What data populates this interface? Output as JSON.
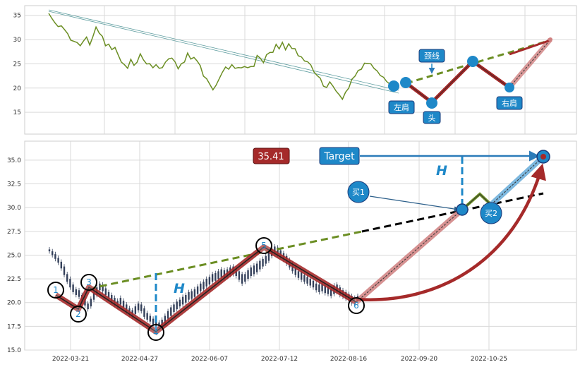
{
  "chart_data": [
    {
      "type": "line",
      "panel": "top",
      "ylim": [
        10.5,
        37
      ],
      "yticks": [
        15,
        20,
        25,
        30,
        35
      ],
      "grid": true,
      "series": [
        {
          "color": "#6b8e23",
          "points": [
            [
              0,
              35.2
            ],
            [
              4,
              34.5
            ],
            [
              8,
              33.3
            ],
            [
              12,
              32.9
            ],
            [
              16,
              32.7
            ],
            [
              20,
              32.2
            ],
            [
              24,
              31.0
            ],
            [
              28,
              30.0
            ],
            [
              32,
              29.5
            ],
            [
              36,
              29.6
            ],
            [
              40,
              28.6
            ],
            [
              44,
              29.8
            ],
            [
              48,
              30.3
            ],
            [
              52,
              29.0
            ],
            [
              56,
              30.5
            ],
            [
              60,
              32.8
            ],
            [
              64,
              31.2
            ],
            [
              68,
              30.8
            ],
            [
              72,
              28.5
            ],
            [
              76,
              29.2
            ],
            [
              80,
              27.8
            ],
            [
              84,
              28.6
            ],
            [
              88,
              26.7
            ],
            [
              92,
              25.5
            ],
            [
              96,
              24.6
            ],
            [
              100,
              24.2
            ],
            [
              104,
              25.8
            ],
            [
              108,
              24.9
            ],
            [
              112,
              25.2
            ],
            [
              116,
              27.2
            ],
            [
              120,
              25.6
            ],
            [
              124,
              25.1
            ],
            [
              128,
              24.9
            ],
            [
              132,
              24.4
            ],
            [
              136,
              24.7
            ],
            [
              140,
              24.2
            ],
            [
              144,
              24.0
            ],
            [
              148,
              25.5
            ],
            [
              152,
              25.9
            ],
            [
              156,
              26.4
            ],
            [
              160,
              25.3
            ],
            [
              164,
              24.1
            ],
            [
              168,
              24.8
            ],
            [
              172,
              25.5
            ],
            [
              176,
              27.1
            ],
            [
              180,
              26.2
            ],
            [
              184,
              26.2
            ],
            [
              188,
              25.7
            ],
            [
              192,
              24.4
            ],
            [
              196,
              22.6
            ],
            [
              200,
              21.8
            ],
            [
              204,
              21.0
            ],
            [
              208,
              19.5
            ],
            [
              212,
              20.7
            ],
            [
              216,
              21.7
            ],
            [
              220,
              23.4
            ],
            [
              224,
              24.2
            ],
            [
              228,
              24.1
            ],
            [
              232,
              24.7
            ],
            [
              236,
              24.2
            ],
            [
              240,
              24.0
            ],
            [
              244,
              24.3
            ],
            [
              248,
              24.3
            ],
            [
              252,
              24.4
            ],
            [
              256,
              24.3
            ],
            [
              260,
              24.6
            ],
            [
              264,
              26.5
            ],
            [
              268,
              26.3
            ],
            [
              272,
              25.1
            ],
            [
              276,
              27.1
            ],
            [
              280,
              27.2
            ],
            [
              284,
              27.5
            ],
            [
              288,
              28.8
            ],
            [
              292,
              28.2
            ],
            [
              296,
              29.3
            ],
            [
              300,
              28.1
            ],
            [
              304,
              29.0
            ],
            [
              308,
              28.3
            ],
            [
              312,
              27.9
            ],
            [
              316,
              26.8
            ],
            [
              320,
              26.3
            ],
            [
              324,
              25.8
            ],
            [
              328,
              25.3
            ],
            [
              332,
              24.9
            ],
            [
              336,
              23.1
            ],
            [
              340,
              22.7
            ],
            [
              344,
              21.9
            ],
            [
              348,
              20.6
            ],
            [
              352,
              20.0
            ],
            [
              356,
              21.4
            ],
            [
              360,
              20.2
            ],
            [
              364,
              19.5
            ],
            [
              368,
              18.5
            ],
            [
              372,
              17.9
            ],
            [
              376,
              19.0
            ],
            [
              380,
              20.1
            ],
            [
              384,
              21.6
            ],
            [
              388,
              22.6
            ],
            [
              392,
              23.5
            ],
            [
              396,
              24.1
            ],
            [
              400,
              25.0
            ],
            [
              404,
              25.2
            ],
            [
              408,
              24.8
            ],
            [
              412,
              24.2
            ],
            [
              416,
              23.4
            ],
            [
              420,
              22.8
            ],
            [
              424,
              22.1
            ],
            [
              428,
              21.5
            ],
            [
              432,
              20.6
            ],
            [
              436,
              20.3
            ],
            [
              437,
              20.2
            ]
          ]
        }
      ]
    },
    {
      "type": "candlestick",
      "panel": "bottom",
      "ylim": [
        15.0,
        37.0
      ],
      "yticks": [
        "15.0",
        "17.5",
        "20.0",
        "22.5",
        "25.0",
        "27.5",
        "30.0",
        "32.5",
        "35.0"
      ],
      "xtick_labels": [
        "2022-03-21",
        "2022-04-27",
        "2022-06-07",
        "2022-07-12",
        "2022-08-16",
        "2022-09-20",
        "2022-10-25"
      ],
      "grid": true,
      "candles": [
        [
          25.4,
          25.6
        ],
        [
          25.0,
          25.4
        ],
        [
          24.6,
          25.1
        ],
        [
          24.2,
          24.7
        ],
        [
          23.6,
          24.3
        ],
        [
          22.9,
          23.8
        ],
        [
          22.2,
          23.0
        ],
        [
          21.6,
          22.5
        ],
        [
          21.1,
          21.9
        ],
        [
          20.8,
          21.4
        ],
        [
          20.6,
          21.3
        ],
        [
          20.1,
          20.8
        ],
        [
          19.7,
          20.4
        ],
        [
          19.3,
          19.9
        ],
        [
          19.6,
          20.4
        ],
        [
          20.3,
          21.1
        ],
        [
          20.8,
          21.6
        ],
        [
          21.3,
          22.0
        ],
        [
          21.2,
          21.9
        ],
        [
          20.8,
          21.5
        ],
        [
          20.5,
          21.1
        ],
        [
          20.1,
          20.8
        ],
        [
          19.8,
          20.5
        ],
        [
          19.6,
          20.2
        ],
        [
          19.8,
          20.5
        ],
        [
          19.5,
          20.2
        ],
        [
          19.0,
          19.8
        ],
        [
          18.7,
          19.4
        ],
        [
          18.5,
          19.2
        ],
        [
          18.8,
          19.6
        ],
        [
          19.2,
          19.9
        ],
        [
          19.1,
          19.8
        ],
        [
          18.5,
          19.4
        ],
        [
          18.2,
          18.9
        ],
        [
          18.0,
          18.6
        ],
        [
          17.7,
          18.3
        ],
        [
          17.5,
          18.1
        ],
        [
          17.3,
          17.9
        ],
        [
          17.4,
          18.2
        ],
        [
          17.8,
          18.6
        ],
        [
          18.3,
          19.1
        ],
        [
          18.6,
          19.5
        ],
        [
          19.0,
          19.8
        ],
        [
          19.3,
          20.1
        ],
        [
          19.6,
          20.3
        ],
        [
          19.8,
          20.6
        ],
        [
          20.0,
          20.8
        ],
        [
          20.3,
          21.1
        ],
        [
          20.4,
          21.2
        ],
        [
          20.6,
          21.4
        ],
        [
          20.9,
          21.7
        ],
        [
          21.2,
          22.0
        ],
        [
          21.4,
          22.2
        ],
        [
          21.7,
          22.5
        ],
        [
          21.9,
          22.7
        ],
        [
          22.2,
          23.0
        ],
        [
          22.3,
          23.1
        ],
        [
          22.5,
          23.3
        ],
        [
          22.7,
          23.5
        ],
        [
          22.6,
          23.4
        ],
        [
          22.7,
          23.5
        ],
        [
          22.9,
          23.7
        ],
        [
          23.0,
          23.8
        ],
        [
          22.8,
          23.6
        ],
        [
          22.4,
          23.3
        ],
        [
          22.0,
          23.0
        ],
        [
          22.2,
          23.0
        ],
        [
          22.5,
          23.4
        ],
        [
          22.8,
          23.7
        ],
        [
          23.0,
          23.9
        ],
        [
          23.2,
          24.1
        ],
        [
          23.5,
          24.4
        ],
        [
          23.8,
          24.6
        ],
        [
          24.1,
          24.9
        ],
        [
          24.4,
          25.3
        ],
        [
          24.9,
          25.7
        ],
        [
          25.2,
          25.9
        ],
        [
          25.0,
          25.8
        ],
        [
          24.8,
          25.5
        ],
        [
          24.5,
          25.2
        ],
        [
          24.1,
          24.9
        ],
        [
          23.7,
          24.5
        ],
        [
          23.3,
          24.1
        ],
        [
          22.9,
          23.7
        ],
        [
          22.6,
          23.3
        ],
        [
          22.4,
          23.2
        ],
        [
          22.2,
          22.9
        ],
        [
          22.0,
          22.7
        ],
        [
          21.8,
          22.5
        ],
        [
          21.6,
          22.3
        ],
        [
          21.3,
          22.0
        ],
        [
          21.1,
          21.9
        ],
        [
          21.2,
          22.0
        ],
        [
          21.0,
          21.8
        ],
        [
          20.9,
          21.6
        ],
        [
          20.7,
          21.4
        ],
        [
          20.9,
          21.8
        ],
        [
          21.1,
          21.9
        ],
        [
          20.8,
          21.6
        ],
        [
          20.6,
          21.3
        ],
        [
          20.4,
          21.1
        ],
        [
          20.2,
          20.9
        ],
        [
          19.9,
          20.7
        ],
        [
          19.8,
          20.5
        ],
        [
          20.0,
          20.7
        ]
      ]
    }
  ],
  "annotations": {
    "top": {
      "left_shoulder": "左肩",
      "head": "头",
      "neckline": "颈线",
      "right_shoulder": "右肩"
    },
    "bottom": {
      "price_badge": "35.41",
      "target_label": "Target",
      "height_label_left": "H",
      "height_label_right": "H",
      "buy1": "买1",
      "buy2": "买2",
      "points": [
        "1",
        "2",
        "3",
        "4",
        "5",
        "6"
      ]
    }
  },
  "colors": {
    "price_line": "#6b8e23",
    "pattern_line": "#a52a2a",
    "neckline": "#6b8e23",
    "projection": "#000000",
    "marker_blue": "#1e88c8",
    "badge_red": "#a52a2a",
    "target_blue": "#1e88c8",
    "target_arrow": "#2b7bb9",
    "candle_body": "#34405a"
  }
}
